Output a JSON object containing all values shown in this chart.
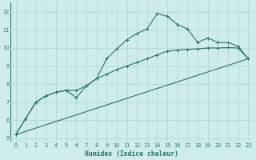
{
  "xlabel": "Humidex (Indice chaleur)",
  "bg_color": "#ceecea",
  "grid_color": "#b8d9d6",
  "line_color": "#2a7068",
  "xlim": [
    -0.5,
    23.5
  ],
  "ylim": [
    4.8,
    12.5
  ],
  "xticks": [
    0,
    1,
    2,
    3,
    4,
    5,
    6,
    7,
    8,
    9,
    10,
    11,
    12,
    13,
    14,
    15,
    16,
    17,
    18,
    19,
    20,
    21,
    22,
    23
  ],
  "yticks": [
    5,
    6,
    7,
    8,
    9,
    10,
    11,
    12
  ],
  "series1_x": [
    0,
    1,
    2,
    3,
    4,
    5,
    6,
    7,
    8,
    9,
    10,
    11,
    12,
    13,
    14,
    15,
    16,
    17,
    18,
    19,
    20,
    21,
    22,
    23
  ],
  "series1_y": [
    5.2,
    6.1,
    7.0,
    7.35,
    7.55,
    7.65,
    7.25,
    7.9,
    8.3,
    9.4,
    9.95,
    10.45,
    10.8,
    11.05,
    11.9,
    11.75,
    11.3,
    11.05,
    10.3,
    10.55,
    10.3,
    10.3,
    10.1,
    9.4
  ],
  "series2_x": [
    0,
    1,
    2,
    3,
    4,
    5,
    6,
    7,
    8,
    9,
    10,
    11,
    12,
    13,
    14,
    15,
    16,
    17,
    18,
    19,
    20,
    21,
    22,
    23
  ],
  "series2_y": [
    5.2,
    6.1,
    7.0,
    7.35,
    7.55,
    7.65,
    7.65,
    7.9,
    8.3,
    8.55,
    8.8,
    9.0,
    9.2,
    9.4,
    9.62,
    9.82,
    9.88,
    9.92,
    9.95,
    10.0,
    10.0,
    10.02,
    10.0,
    9.4
  ],
  "series3_x": [
    0,
    23
  ],
  "series3_y": [
    5.2,
    9.4
  ]
}
